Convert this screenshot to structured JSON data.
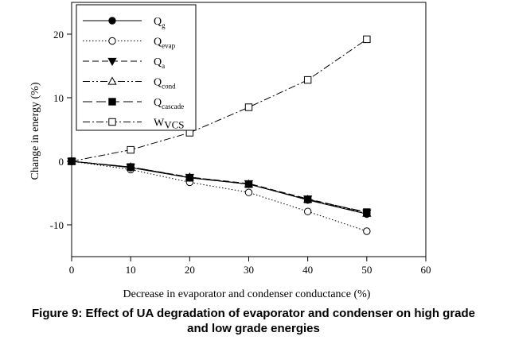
{
  "caption": {
    "line1": "Figure 9: Effect of UA degradation of evaporator and condenser on high grade",
    "line2": "and low grade energies"
  },
  "chart_data": {
    "type": "line",
    "title": "",
    "xlabel": "Decrease in evaporator and condenser conductance (%)",
    "ylabel": "Change in energy (%)",
    "xlim": [
      0,
      60
    ],
    "ylim": [
      -15,
      25
    ],
    "xticks": [
      0,
      10,
      20,
      30,
      40,
      50,
      60
    ],
    "yticks": [
      -10,
      0,
      10,
      20
    ],
    "grid": false,
    "legend_position": "top-left",
    "x": [
      0,
      10,
      20,
      30,
      40,
      50
    ],
    "series": [
      {
        "name": "Q",
        "sub": "g",
        "values": [
          0,
          -1.0,
          -2.6,
          -3.6,
          -6.1,
          -8.3
        ],
        "style": "solid",
        "marker": "circle-filled"
      },
      {
        "name": "Q",
        "sub": "evap",
        "values": [
          0,
          -1.3,
          -3.3,
          -4.9,
          -7.9,
          -11.0
        ],
        "style": "dotted",
        "marker": "circle-open"
      },
      {
        "name": "Q",
        "sub": "a",
        "values": [
          0,
          -0.9,
          -2.5,
          -3.5,
          -5.9,
          -8.1
        ],
        "style": "dashed",
        "marker": "triangle-down-filled"
      },
      {
        "name": "Q",
        "sub": "cond",
        "values": [
          0,
          -0.9,
          -2.5,
          -3.6,
          -6.0,
          -8.2
        ],
        "style": "dashdotdot",
        "marker": "triangle-up-open"
      },
      {
        "name": "Q",
        "sub": "cascade",
        "values": [
          0,
          -0.9,
          -2.6,
          -3.6,
          -6.0,
          -8.0
        ],
        "style": "longdash",
        "marker": "square-filled"
      },
      {
        "name": "W",
        "sub": "VCS",
        "values": [
          0,
          1.8,
          4.5,
          8.5,
          12.8,
          19.2
        ],
        "style": "dashdot",
        "marker": "square-open",
        "sub_style": "inline"
      }
    ]
  }
}
